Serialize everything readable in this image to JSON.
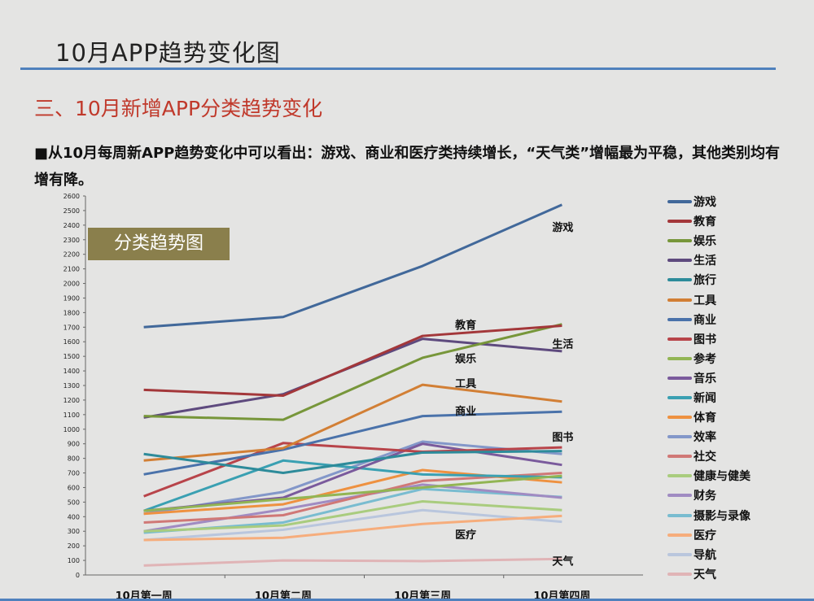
{
  "header": {
    "title": "10月APP趋势变化图",
    "subtitle": "三、10月新增APP分类趋势变化",
    "description": "■从10月每周新APP趋势变化中可以看出：游戏、商业和医疗类持续增长，“天气类”增幅最为平稳，其他类别均有增有降。"
  },
  "badge": "分类趋势图",
  "chart_data": {
    "type": "line",
    "categories": [
      "10月第一周",
      "10月第二周",
      "10月第三周",
      "10月第四周"
    ],
    "ylim": [
      0,
      2600
    ],
    "yticks": [
      0,
      100,
      200,
      300,
      400,
      500,
      600,
      700,
      800,
      900,
      1000,
      1100,
      1200,
      1300,
      1400,
      1500,
      1600,
      1700,
      1800,
      1900,
      2000,
      2100,
      2200,
      2300,
      2400,
      2500,
      2600
    ],
    "legend": "right",
    "grid": false,
    "series": [
      {
        "name": "游戏",
        "color": "#41689a",
        "values": [
          1700,
          1770,
          2120,
          2540
        ]
      },
      {
        "name": "教育",
        "color": "#a3373a",
        "values": [
          1270,
          1230,
          1640,
          1710
        ]
      },
      {
        "name": "娱乐",
        "color": "#77963a",
        "values": [
          1090,
          1065,
          1490,
          1720
        ]
      },
      {
        "name": "生活",
        "color": "#5e4a7e",
        "values": [
          1080,
          1240,
          1620,
          1535
        ]
      },
      {
        "name": "旅行",
        "color": "#2d8b9a",
        "values": [
          830,
          700,
          840,
          850
        ]
      },
      {
        "name": "工具",
        "color": "#d27f35",
        "values": [
          785,
          870,
          1305,
          1190
        ]
      },
      {
        "name": "商业",
        "color": "#4a72aa",
        "values": [
          690,
          860,
          1090,
          1120
        ]
      },
      {
        "name": "图书",
        "color": "#b8444a",
        "values": [
          540,
          905,
          845,
          875
        ]
      },
      {
        "name": "参考",
        "color": "#92b554",
        "values": [
          440,
          520,
          600,
          680
        ]
      },
      {
        "name": "音乐",
        "color": "#7a5a9c",
        "values": [
          440,
          530,
          900,
          755
        ]
      },
      {
        "name": "新闻",
        "color": "#3aa0b2",
        "values": [
          440,
          785,
          690,
          670
        ]
      },
      {
        "name": "体育",
        "color": "#ee9140",
        "values": [
          420,
          485,
          720,
          635
        ]
      },
      {
        "name": "效率",
        "color": "#8397c9",
        "values": [
          420,
          570,
          915,
          830
        ]
      },
      {
        "name": "社交",
        "color": "#d07876",
        "values": [
          360,
          410,
          645,
          700
        ]
      },
      {
        "name": "健康与健美",
        "color": "#a9cc7e",
        "values": [
          300,
          340,
          505,
          445
        ]
      },
      {
        "name": "财务",
        "color": "#a08bc2",
        "values": [
          300,
          450,
          620,
          530
        ]
      },
      {
        "name": "摄影与录像",
        "color": "#79bcd0",
        "values": [
          290,
          360,
          590,
          535
        ]
      },
      {
        "name": "医疗",
        "color": "#f6ad7c",
        "values": [
          240,
          255,
          350,
          405
        ]
      },
      {
        "name": "导航",
        "color": "#b9c6dd",
        "values": [
          240,
          310,
          445,
          365
        ]
      },
      {
        "name": "天气",
        "color": "#e0b4b6",
        "values": [
          65,
          100,
          95,
          110
        ]
      }
    ],
    "annotations": [
      {
        "text": "游戏",
        "x": "10月第四周",
        "y": 2360
      },
      {
        "text": "教育",
        "x": "10月第三周",
        "y": 1690
      },
      {
        "text": "生活",
        "x": "10月第四周",
        "y": 1560
      },
      {
        "text": "娱乐",
        "x": "10月第三周",
        "y": 1460
      },
      {
        "text": "工具",
        "x": "10月第三周",
        "y": 1290
      },
      {
        "text": "商业",
        "x": "10月第三周",
        "y": 1100
      },
      {
        "text": "图书",
        "x": "10月第四周",
        "y": 920
      },
      {
        "text": "医疗",
        "x": "10月第三周",
        "y": 250
      },
      {
        "text": "天气",
        "x": "10月第四周",
        "y": 70
      }
    ]
  }
}
